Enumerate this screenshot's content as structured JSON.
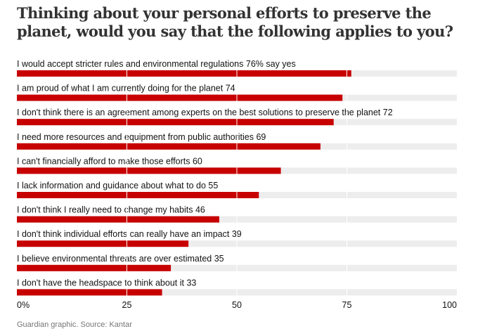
{
  "title": "Thinking about your personal efforts to preserve the planet, would you say that the following applies to you?",
  "source": "Guardian graphic. Source: Kantar",
  "colors": {
    "bar": "#c70000",
    "track": "#ededed",
    "text": "#121212",
    "muted": "#767676"
  },
  "chart_data": {
    "type": "bar",
    "orientation": "horizontal",
    "categories": [
      "I would accept stricter rules and environmental regulations",
      "I am proud of what I am currently doing for the planet",
      "I don't think there is an agreement among experts on the best solutions to preserve the planet",
      "I need more resources and equipment from public authorities",
      "I can't financially afford to make those efforts",
      "I lack information and guidance about what to do",
      "I don't think I really need to change my habits",
      "I don't think individual efforts can really have an impact",
      "I believe environmental threats are over estimated",
      "I don't have the headspace to think about it"
    ],
    "values": [
      76,
      74,
      72,
      69,
      60,
      55,
      46,
      39,
      35,
      33
    ],
    "value_labels": [
      "76% say yes",
      "74",
      "72",
      "69",
      "60",
      "55",
      "46",
      "39",
      "35",
      "33"
    ],
    "xlim": [
      0,
      100
    ],
    "xticks": [
      "0%",
      "25",
      "50",
      "75",
      "100"
    ],
    "tick_values": [
      0,
      25,
      50,
      75,
      100
    ],
    "grid": true,
    "legend": "none"
  }
}
